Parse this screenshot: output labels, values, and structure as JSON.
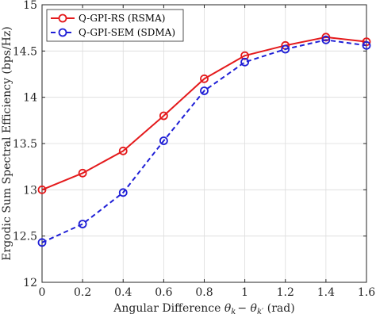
{
  "chart_data": {
    "type": "line",
    "title": "",
    "xlabel": "Angular Difference θ_k − θ_k′ (rad)",
    "xlabel_parts": {
      "prefix": "Angular Difference ",
      "theta": "θ",
      "sub1": "k",
      "minus": "− ",
      "sub2": "k′",
      "suffix": " (rad)"
    },
    "ylabel": "Ergodic Sum Spectral Efficiency (bps/Hz)",
    "x": [
      0,
      0.2,
      0.4,
      0.6,
      0.8,
      1.0,
      1.2,
      1.4,
      1.6
    ],
    "xlim": [
      0,
      1.6
    ],
    "ylim": [
      12,
      15
    ],
    "xticks": [
      0,
      0.2,
      0.4,
      0.6,
      0.8,
      1.0,
      1.2,
      1.4,
      1.6
    ],
    "xtick_labels": [
      "0",
      "0.2",
      "0.4",
      "0.6",
      "0.8",
      "1",
      "1.2",
      "1.4",
      "1.6"
    ],
    "yticks": [
      12,
      12.5,
      13,
      13.5,
      14,
      14.5,
      15
    ],
    "ytick_labels": [
      "12",
      "12.5",
      "13",
      "13.5",
      "14",
      "14.5",
      "15"
    ],
    "grid": true,
    "legend_position": "top-left",
    "series": [
      {
        "name": "Q-GPI-RS (RSMA)",
        "color": "#e41a1c",
        "line_style": "solid",
        "marker": "circle",
        "values": [
          13.0,
          13.18,
          13.42,
          13.8,
          14.2,
          14.45,
          14.56,
          14.65,
          14.6
        ]
      },
      {
        "name": "Q-GPI-SEM (SDMA)",
        "color": "#1f1fd6",
        "line_style": "dashed",
        "marker": "circle",
        "values": [
          12.43,
          12.63,
          12.97,
          13.53,
          14.07,
          14.38,
          14.52,
          14.62,
          14.56
        ]
      }
    ]
  }
}
